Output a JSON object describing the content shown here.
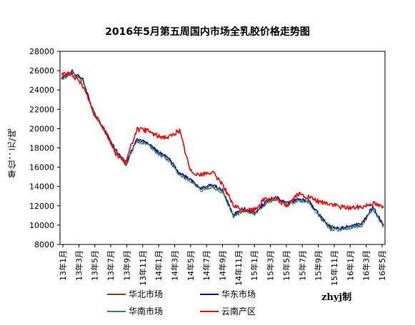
{
  "chart_data": {
    "type": "line",
    "title": "2016年5月第五周国内市场全乳胶价格走势图",
    "ylabel": "单位：元/吨",
    "xlabel": "",
    "ylim": [
      8000,
      28000
    ],
    "yticks": [
      8000,
      10000,
      12000,
      14000,
      16000,
      18000,
      20000,
      22000,
      24000,
      26000,
      28000
    ],
    "grid": "none",
    "legend_position": "bottom",
    "xticks": [
      "13年1月",
      "13年3月",
      "13年5月",
      "13年7月",
      "13年9月",
      "13年11月",
      "14年1月",
      "14年3月",
      "14年5月",
      "14年7月",
      "14年9月",
      "14年11月",
      "15年1月",
      "15年3月",
      "15年5月",
      "15年7月",
      "15年9月",
      "15年11月",
      "16年1月",
      "16年3月",
      "16年5月"
    ],
    "series": [
      {
        "name": "华北市场",
        "color": "#8B3A1A",
        "values": [
          25200,
          25800,
          25000,
          21500,
          19800,
          17800,
          16300,
          18800,
          18500,
          17500,
          16800,
          15300,
          14700,
          13700,
          14100,
          13500,
          11000,
          11600,
          11200,
          12300,
          12800,
          12200,
          12600,
          12500,
          11000,
          9900,
          9600,
          9800,
          10100,
          11800,
          9900
        ]
      },
      {
        "name": "华东市场",
        "color": "#0000CC",
        "values": [
          25300,
          25900,
          25100,
          21600,
          19900,
          17900,
          16400,
          18900,
          18600,
          17600,
          16900,
          15400,
          14800,
          13800,
          14200,
          13600,
          11100,
          11700,
          11300,
          12400,
          12900,
          12300,
          12700,
          12600,
          11100,
          9700,
          9700,
          9900,
          10200,
          11900,
          10000
        ]
      },
      {
        "name": "华南市场",
        "color": "#2E8B57",
        "values": [
          25100,
          25700,
          24900,
          21400,
          19700,
          17700,
          16200,
          18700,
          18400,
          17400,
          16700,
          15200,
          14600,
          13600,
          14000,
          13400,
          10900,
          11500,
          11100,
          12200,
          12700,
          12100,
          12500,
          12400,
          10900,
          9600,
          9500,
          9700,
          10000,
          11700,
          9800
        ]
      },
      {
        "name": "云南产区",
        "color": "#FF0000",
        "values": [
          25700,
          25600,
          24400,
          21800,
          20000,
          17500,
          16500,
          19900,
          19800,
          19200,
          19100,
          19800,
          15600,
          15200,
          15500,
          14300,
          12000,
          11500,
          11600,
          12800,
          12700,
          12000,
          13200,
          12900,
          12400,
          12200,
          11900,
          11800,
          11900,
          12300,
          11800
        ]
      }
    ]
  },
  "watermark": "zhyj制"
}
